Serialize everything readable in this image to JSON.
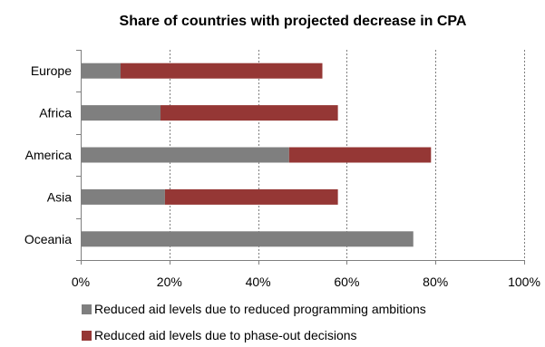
{
  "chart_data": {
    "type": "bar",
    "orientation": "horizontal",
    "stacked": true,
    "title": "Share of countries with projected decrease in CPA",
    "categories": [
      "Europe",
      "Africa",
      "America",
      "Asia",
      "Oceania"
    ],
    "series": [
      {
        "name": "Reduced aid levels due to reduced programming ambitions",
        "color": "#7f7f7f",
        "values": [
          0.09,
          0.18,
          0.47,
          0.19,
          0.75
        ]
      },
      {
        "name": "Reduced aid levels due to phase-out decisions",
        "color": "#953735",
        "values": [
          0.455,
          0.4,
          0.32,
          0.39,
          0.0
        ]
      }
    ],
    "xlim": [
      0,
      1
    ],
    "ticks": [
      0,
      0.2,
      0.4,
      0.6,
      0.8,
      1.0
    ],
    "tick_labels": [
      "0%",
      "20%",
      "40%",
      "60%",
      "80%",
      "100%"
    ],
    "grid": "vertical dashed",
    "legend_position": "bottom"
  }
}
